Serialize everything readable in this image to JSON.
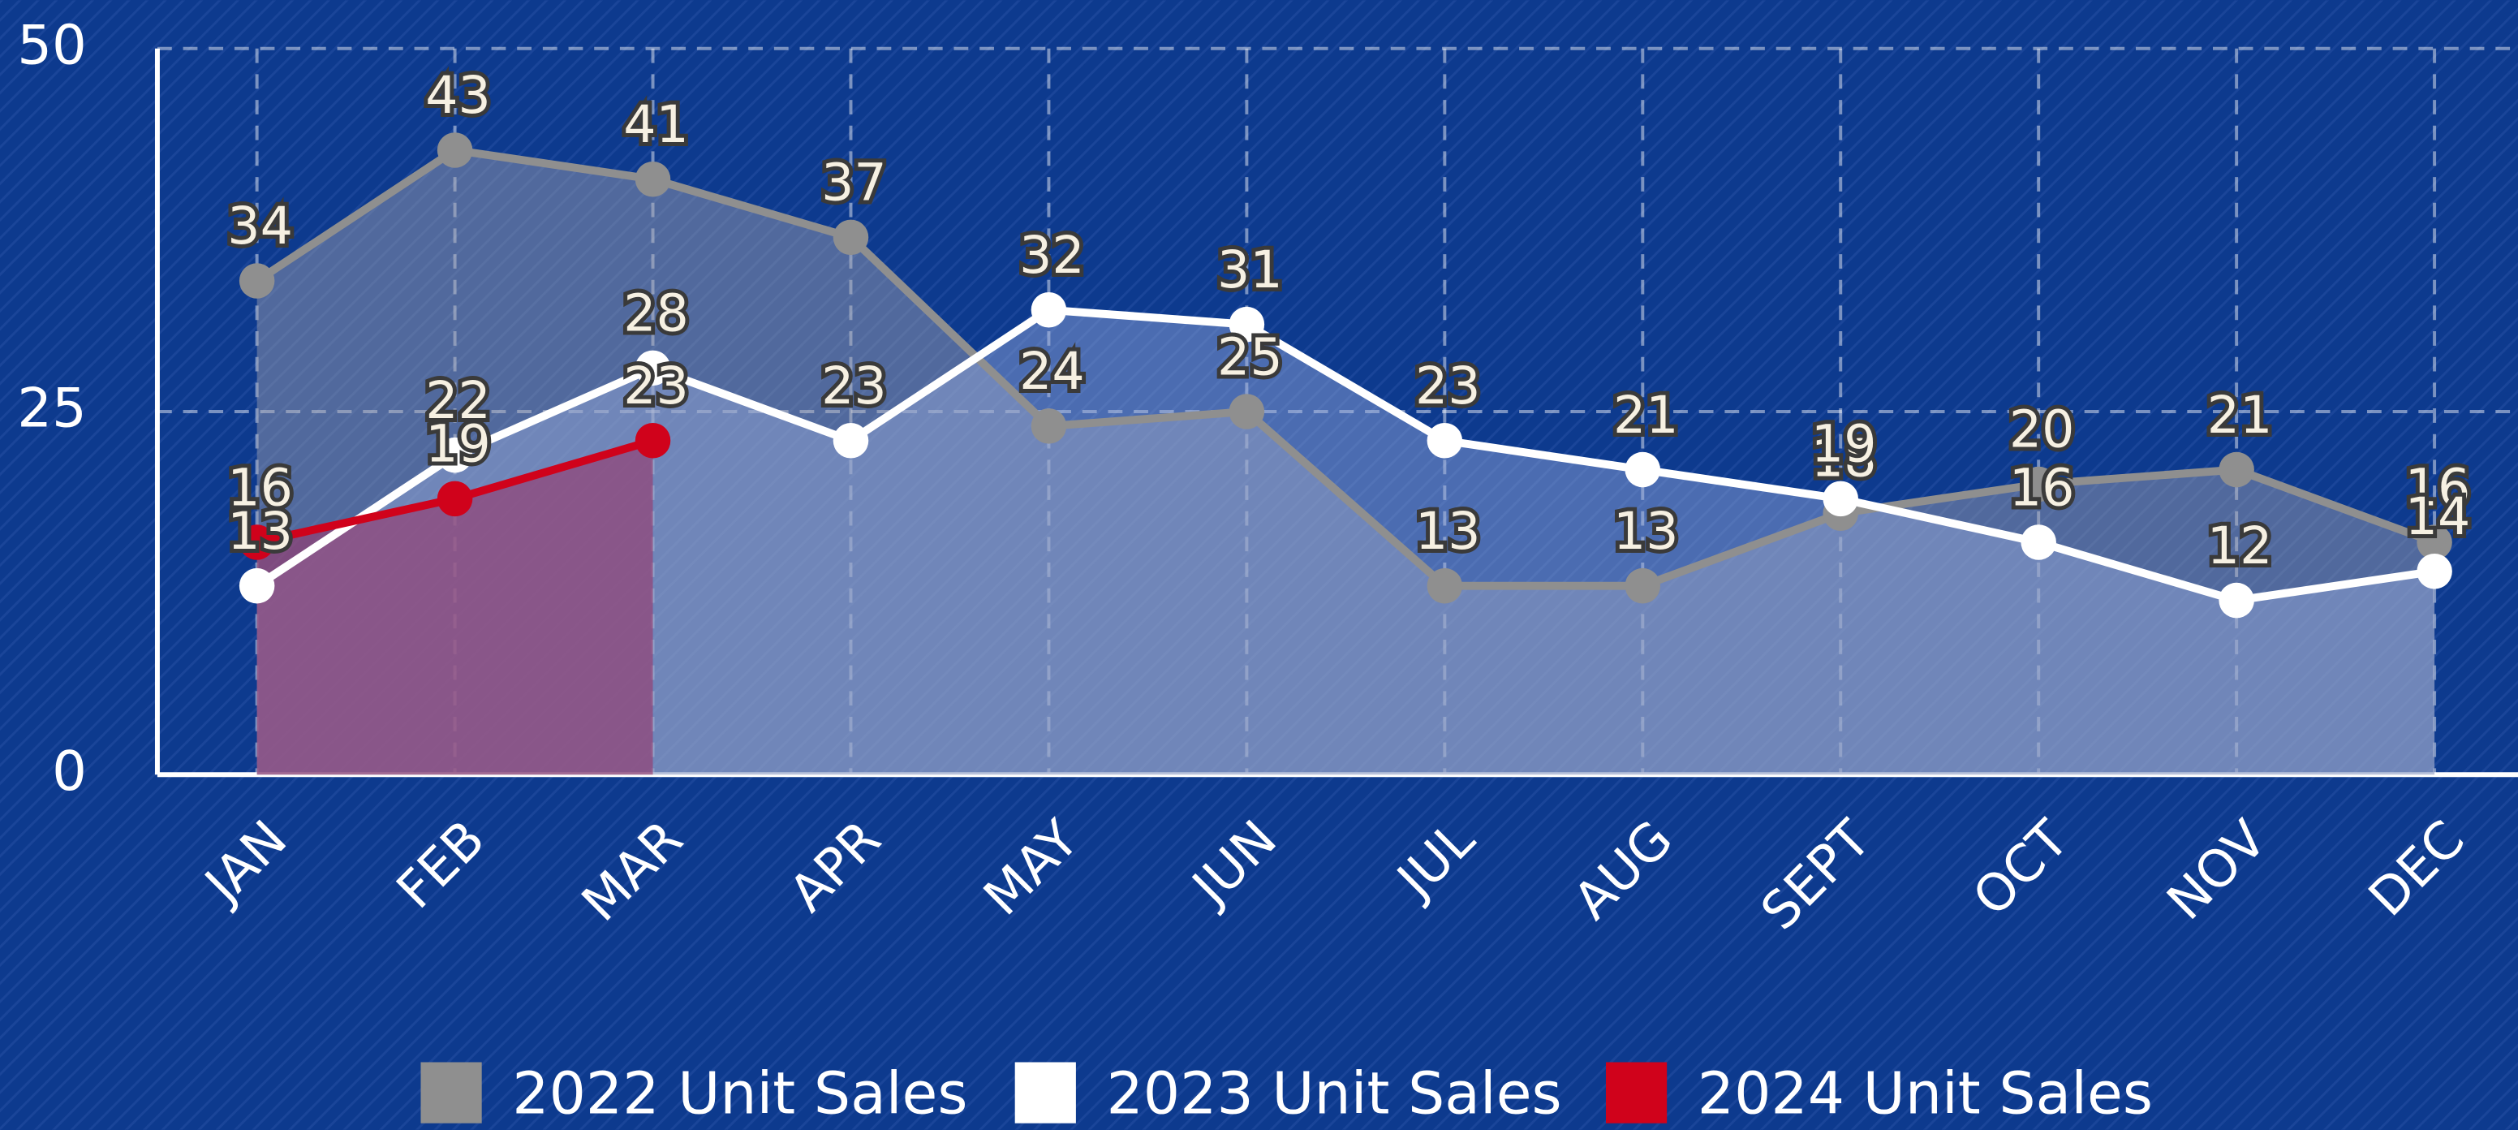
{
  "chart_data": {
    "type": "line",
    "categories": [
      "JAN",
      "FEB",
      "MAR",
      "APR",
      "MAY",
      "JUN",
      "JUL",
      "AUG",
      "SEPT",
      "OCT",
      "NOV",
      "DEC"
    ],
    "series": [
      {
        "name": "2022 Unit Sales",
        "color": "#8f8f8f",
        "values": [
          34,
          43,
          41,
          37,
          24,
          25,
          13,
          13,
          18,
          20,
          21,
          16
        ]
      },
      {
        "name": "2023 Unit Sales",
        "color": "#ffffff",
        "values": [
          13,
          22,
          28,
          23,
          32,
          31,
          23,
          21,
          19,
          16,
          12,
          14
        ]
      },
      {
        "name": "2024 Unit Sales",
        "color": "#d0021b",
        "values": [
          16,
          19,
          23,
          null,
          null,
          null,
          null,
          null,
          null,
          null,
          null,
          null
        ]
      }
    ],
    "ylim": [
      0,
      50
    ],
    "yticks": [
      0,
      25,
      50
    ],
    "grid": true,
    "legend": "bottom"
  }
}
